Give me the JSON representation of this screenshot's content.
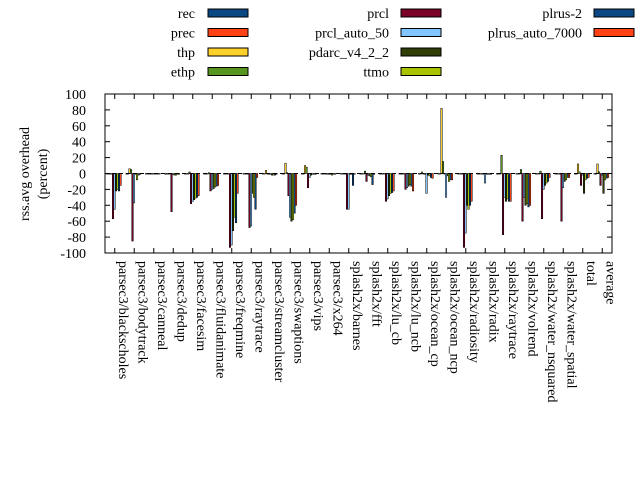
{
  "chart_data": {
    "type": "bar",
    "title": "",
    "xlabel": "",
    "ylabel": "rss.avg overhead\n(percent)",
    "ylabel_lines": [
      "rss.avg overhead",
      "(percent)"
    ],
    "ylim": [
      -100,
      100
    ],
    "yticks": [
      100,
      80,
      60,
      40,
      20,
      0,
      -20,
      -40,
      -60,
      -80,
      -100
    ],
    "grid": false,
    "legend_position": "top",
    "categories": [
      "parsec3/blackscholes",
      "parsec3/bodytrack",
      "parsec3/canneal",
      "parsec3/dedup",
      "parsec3/facesim",
      "parsec3/fluidanimate",
      "parsec3/freqmine",
      "parsec3/raytrace",
      "parsec3/streamcluster",
      "parsec3/swaptions",
      "parsec3/vips",
      "parsec3/x264",
      "splash2x/barnes",
      "splash2x/fft",
      "splash2x/lu_cb",
      "splash2x/lu_ncb",
      "splash2x/ocean_cp",
      "splash2x/ocean_ncp",
      "splash2x/radiosity",
      "splash2x/radix",
      "splash2x/raytrace",
      "splash2x/volrend",
      "splash2x/water_nsquared",
      "splash2x/water_spatial",
      "total",
      "average"
    ],
    "series": [
      {
        "name": "rec",
        "color": "#0b4783",
        "values": [
          0,
          0,
          0,
          -1,
          0,
          0,
          0,
          0,
          0,
          0,
          0,
          0,
          0,
          0,
          0,
          0,
          0,
          0,
          0,
          0,
          0,
          0,
          0,
          0,
          0,
          0
        ]
      },
      {
        "name": "prec",
        "color": "#ff4316",
        "values": [
          0,
          0,
          0,
          0,
          0,
          0,
          0,
          0,
          0,
          0,
          0,
          0,
          0,
          0,
          0,
          0,
          0,
          0,
          0,
          0,
          0,
          0,
          0,
          0,
          0,
          0
        ]
      },
      {
        "name": "thp",
        "color": "#ffd12b",
        "values": [
          0,
          6,
          0,
          0,
          0,
          0,
          0,
          0,
          4,
          13,
          10,
          0,
          0,
          0,
          0,
          0,
          2,
          82,
          0,
          0,
          0,
          0,
          0,
          0,
          12,
          12
        ]
      },
      {
        "name": "ethp",
        "color": "#58951f",
        "values": [
          0,
          5,
          0,
          0,
          2,
          1,
          0,
          0,
          0,
          1,
          8,
          0,
          0,
          3,
          0,
          0,
          0,
          15,
          0,
          0,
          23,
          5,
          3,
          0,
          2,
          2
        ]
      },
      {
        "name": "prcl",
        "color": "#7a0026",
        "values": [
          -57,
          -85,
          0,
          -48,
          -38,
          -22,
          -93,
          -68,
          -1,
          -28,
          -18,
          -1,
          -45,
          -10,
          -35,
          -20,
          -1,
          0,
          -93,
          -1,
          -77,
          -60,
          -57,
          -60,
          -15,
          -15
        ]
      },
      {
        "name": "prcl_auto_50",
        "color": "#82c6ff",
        "values": [
          -45,
          -37,
          0,
          -1,
          -35,
          -20,
          -90,
          -66,
          -1,
          -55,
          -5,
          -1,
          -45,
          -2,
          -32,
          -18,
          -25,
          -30,
          -75,
          -12,
          -30,
          -30,
          -20,
          -18,
          -2,
          -2
        ]
      },
      {
        "name": "pdarc_v4_2_2",
        "color": "#2e3e04",
        "values": [
          -22,
          -1,
          0,
          -2,
          -33,
          -19,
          -72,
          -25,
          -2,
          -60,
          -2,
          -1,
          -1,
          -3,
          -28,
          -16,
          -2,
          -3,
          -40,
          -1,
          -35,
          -40,
          -15,
          -10,
          -25,
          -25
        ]
      },
      {
        "name": "ttmo",
        "color": "#a8c400",
        "values": [
          -20,
          -8,
          0,
          -2,
          -31,
          -17,
          -55,
          -30,
          -2,
          -58,
          -1,
          -2,
          -1,
          -4,
          -25,
          -14,
          -3,
          -10,
          -45,
          -1,
          -32,
          -38,
          -12,
          -8,
          -8,
          -8
        ]
      },
      {
        "name": "plrus-2",
        "color": "#0b4783",
        "values": [
          -22,
          -2,
          0,
          -1,
          -30,
          -16,
          -62,
          -45,
          -2,
          -50,
          -1,
          -1,
          -15,
          -14,
          -24,
          -16,
          -5,
          -8,
          -40,
          -1,
          -35,
          -42,
          -10,
          -5,
          -6,
          -6
        ]
      },
      {
        "name": "plrus_auto_7000",
        "color": "#ff4316",
        "values": [
          -15,
          -1,
          0,
          -1,
          -28,
          -15,
          -25,
          -5,
          -1,
          -40,
          -1,
          -1,
          -1,
          -1,
          -22,
          -22,
          -6,
          -8,
          -35,
          -1,
          -35,
          -40,
          -5,
          -5,
          -5,
          -5
        ]
      }
    ]
  }
}
